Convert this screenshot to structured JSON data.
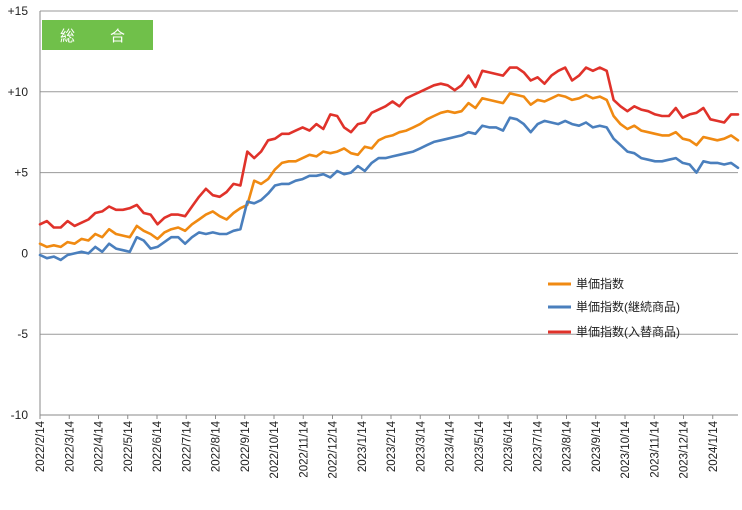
{
  "chart_data": {
    "type": "line",
    "title": "総　合",
    "xlabel": "",
    "ylabel": "",
    "ylim": [
      -10,
      15
    ],
    "yticks": [
      "+15",
      "+10",
      "+5",
      "0",
      "-5",
      "-10"
    ],
    "ytick_values": [
      15,
      10,
      5,
      0,
      -5,
      -10
    ],
    "x_tick_labels": [
      "2022/2/14",
      "2022/3/14",
      "2022/4/14",
      "2022/5/14",
      "2022/6/14",
      "2022/7/14",
      "2022/8/14",
      "2022/9/14",
      "2022/10/14",
      "2022/11/14",
      "2022/12/14",
      "2023/1/14",
      "2023/2/14",
      "2023/3/14",
      "2023/4/14",
      "2023/5/14",
      "2023/6/14",
      "2023/7/14",
      "2023/8/14",
      "2023/9/14",
      "2023/10/14",
      "2023/11/14",
      "2023/12/14",
      "2024/1/14"
    ],
    "grid": "horizontal",
    "legend_position": "right",
    "title_box_color": "#70c04a",
    "series": [
      {
        "name": "単価指数",
        "color": "#f08a12",
        "values": [
          0.6,
          0.4,
          0.5,
          0.4,
          0.7,
          0.6,
          0.9,
          0.8,
          1.2,
          1.0,
          1.5,
          1.2,
          1.1,
          1.0,
          1.7,
          1.4,
          1.2,
          0.9,
          1.3,
          1.5,
          1.6,
          1.4,
          1.8,
          2.1,
          2.4,
          2.6,
          2.3,
          2.1,
          2.5,
          2.8,
          3.0,
          4.5,
          4.3,
          4.6,
          5.2,
          5.6,
          5.7,
          5.7,
          5.9,
          6.1,
          6.0,
          6.3,
          6.2,
          6.3,
          6.5,
          6.2,
          6.1,
          6.6,
          6.5,
          7.0,
          7.2,
          7.3,
          7.5,
          7.6,
          7.8,
          8.0,
          8.3,
          8.5,
          8.7,
          8.8,
          8.7,
          8.8,
          9.3,
          9.0,
          9.6,
          9.5,
          9.4,
          9.3,
          9.9,
          9.8,
          9.7,
          9.2,
          9.5,
          9.4,
          9.6,
          9.8,
          9.7,
          9.5,
          9.6,
          9.8,
          9.6,
          9.7,
          9.5,
          8.5,
          8.0,
          7.7,
          7.9,
          7.6,
          7.5,
          7.4,
          7.3,
          7.3,
          7.5,
          7.1,
          7.0,
          6.7,
          7.2,
          7.1,
          7.0,
          7.1,
          7.3,
          7.0
        ]
      },
      {
        "name": "単価指数(継続商品)",
        "color": "#4a7fbd",
        "values": [
          -0.1,
          -0.3,
          -0.2,
          -0.4,
          -0.1,
          0.0,
          0.1,
          0.0,
          0.4,
          0.1,
          0.6,
          0.3,
          0.2,
          0.1,
          1.0,
          0.8,
          0.3,
          0.4,
          0.7,
          1.0,
          1.0,
          0.6,
          1.0,
          1.3,
          1.2,
          1.3,
          1.2,
          1.2,
          1.4,
          1.5,
          3.2,
          3.1,
          3.3,
          3.7,
          4.2,
          4.3,
          4.3,
          4.5,
          4.6,
          4.8,
          4.8,
          4.9,
          4.7,
          5.1,
          4.9,
          5.0,
          5.4,
          5.1,
          5.6,
          5.9,
          5.9,
          6.0,
          6.1,
          6.2,
          6.3,
          6.5,
          6.7,
          6.9,
          7.0,
          7.1,
          7.2,
          7.3,
          7.5,
          7.4,
          7.9,
          7.8,
          7.8,
          7.6,
          8.4,
          8.3,
          8.0,
          7.5,
          8.0,
          8.2,
          8.1,
          8.0,
          8.2,
          8.0,
          7.9,
          8.1,
          7.8,
          7.9,
          7.8,
          7.1,
          6.7,
          6.3,
          6.2,
          5.9,
          5.8,
          5.7,
          5.7,
          5.8,
          5.9,
          5.6,
          5.5,
          5.0,
          5.7,
          5.6,
          5.6,
          5.5,
          5.6,
          5.3
        ]
      },
      {
        "name": "単価指数(入替商品)",
        "color": "#e0322a",
        "values": [
          1.8,
          2.0,
          1.6,
          1.6,
          2.0,
          1.7,
          1.9,
          2.1,
          2.5,
          2.6,
          2.9,
          2.7,
          2.7,
          2.8,
          3.0,
          2.5,
          2.4,
          1.8,
          2.2,
          2.4,
          2.4,
          2.3,
          2.9,
          3.5,
          4.0,
          3.6,
          3.5,
          3.8,
          4.3,
          4.2,
          6.3,
          5.9,
          6.3,
          7.0,
          7.1,
          7.4,
          7.4,
          7.6,
          7.8,
          7.6,
          8.0,
          7.7,
          8.6,
          8.5,
          7.8,
          7.5,
          8.0,
          8.1,
          8.7,
          8.9,
          9.1,
          9.4,
          9.1,
          9.6,
          9.8,
          10.0,
          10.2,
          10.4,
          10.5,
          10.4,
          10.1,
          10.4,
          11.0,
          10.3,
          11.3,
          11.2,
          11.1,
          11.0,
          11.5,
          11.5,
          11.2,
          10.7,
          10.9,
          10.5,
          11.0,
          11.3,
          11.5,
          10.7,
          11.0,
          11.5,
          11.3,
          11.5,
          11.3,
          9.5,
          9.1,
          8.8,
          9.1,
          8.9,
          8.8,
          8.6,
          8.5,
          8.5,
          9.0,
          8.4,
          8.6,
          8.7,
          9.0,
          8.3,
          8.2,
          8.1,
          8.6,
          8.6
        ]
      }
    ]
  }
}
